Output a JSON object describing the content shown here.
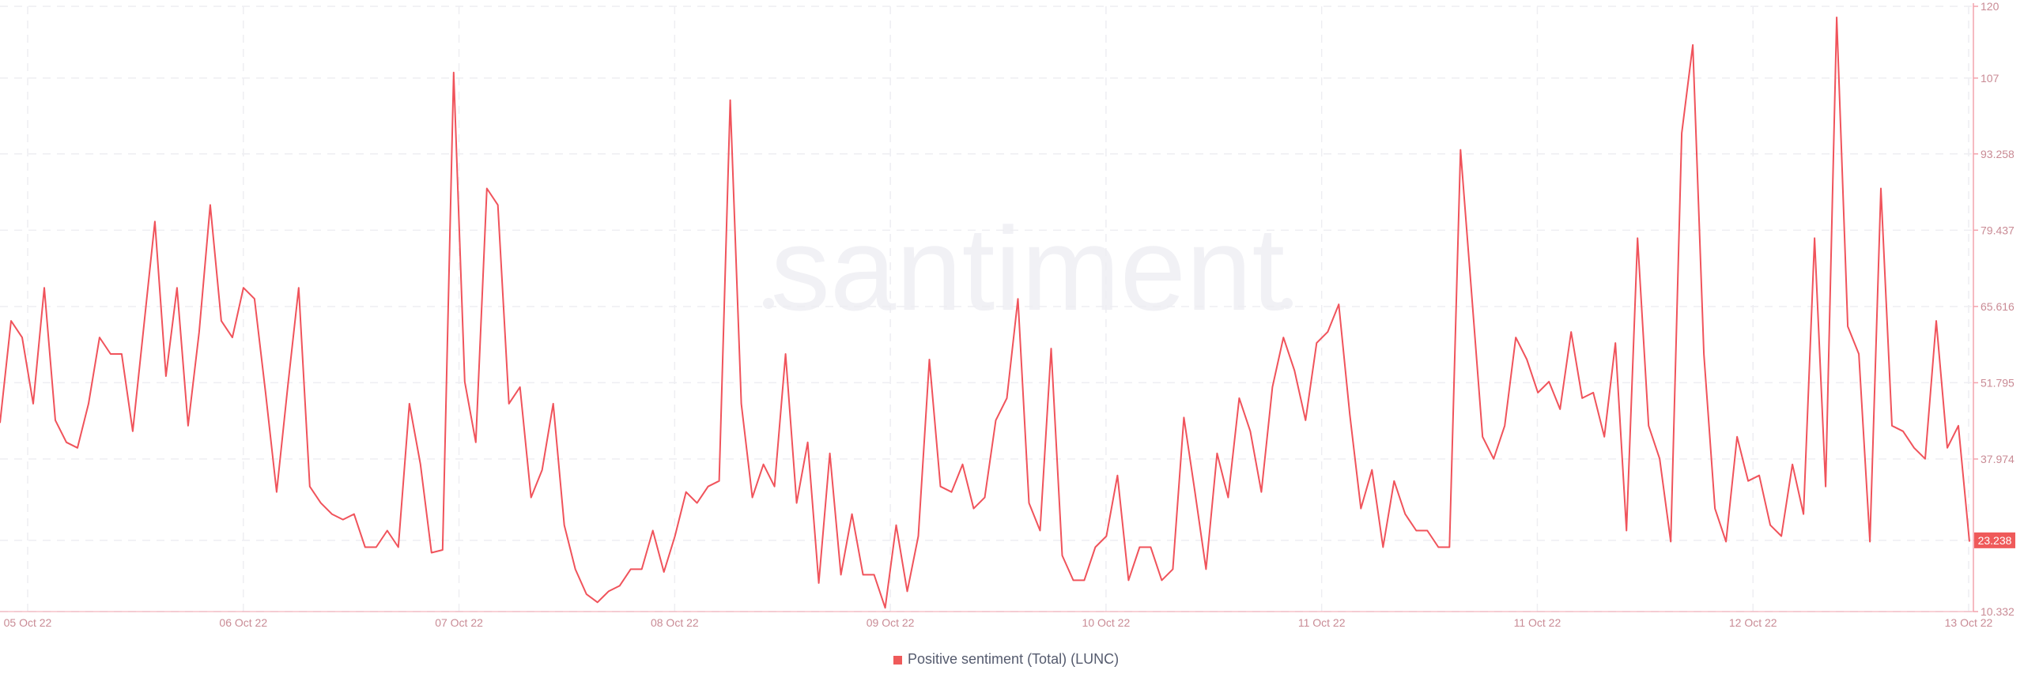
{
  "watermark": "santiment",
  "legend": {
    "label": "Positive sentiment (Total) (LUNC)",
    "color": "#ef5a5a"
  },
  "colors": {
    "line": "#f0535b",
    "axis": "#f3a3ad",
    "tick_text": "#c98b95",
    "grid": "#eeeef2",
    "watermark": "#f1f1f5",
    "last_value_bg": "#ef5a5a"
  },
  "chart_data": {
    "type": "line",
    "title": "",
    "xlabel": "",
    "ylabel": "",
    "x_ticks": [
      "05 Oct 22",
      "06 Oct 22",
      "07 Oct 22",
      "08 Oct 22",
      "09 Oct 22",
      "10 Oct 22",
      "11 Oct 22",
      "11 Oct 22",
      "12 Oct 22",
      "13 Oct 22"
    ],
    "y_ticks": [
      "10.332",
      "23.238",
      "37.974",
      "51.795",
      "65.616",
      "79.437",
      "93.258",
      "107",
      "120"
    ],
    "ylim": [
      10.332,
      120
    ],
    "grid": true,
    "last_value": "23.238",
    "series": [
      {
        "name": "Positive sentiment (Total) (LUNC)",
        "values": [
          44.5,
          63,
          60,
          48,
          69,
          45,
          41,
          40,
          48,
          60,
          57,
          57,
          43,
          62,
          81,
          53,
          69,
          44,
          61,
          84,
          63,
          60,
          69,
          67,
          50,
          32,
          51,
          69,
          33,
          30,
          28,
          27,
          28,
          22,
          22,
          25,
          22,
          48,
          37,
          21,
          21.5,
          108,
          52,
          41,
          87,
          84,
          48,
          51,
          31,
          36,
          48,
          26,
          18,
          13.5,
          12,
          14,
          15,
          18,
          18,
          25,
          17.5,
          24,
          32,
          30,
          33,
          34,
          103,
          48,
          31,
          37,
          33,
          57,
          30,
          41,
          15.5,
          39,
          17,
          28,
          17,
          17,
          11,
          26,
          14,
          24,
          56,
          33,
          32,
          37,
          29,
          31,
          45,
          49,
          67,
          30,
          25,
          58,
          20.5,
          16,
          16,
          22,
          24,
          35,
          16,
          22,
          22,
          16,
          18,
          45.5,
          32,
          18,
          39,
          31,
          49,
          43,
          32,
          51,
          60,
          54,
          45,
          59,
          61,
          66,
          46,
          29,
          36,
          22,
          34,
          28,
          25,
          25,
          22,
          22,
          94,
          68,
          42,
          38,
          44,
          60,
          56,
          50,
          52,
          47,
          61,
          49,
          50,
          42,
          59,
          25,
          78,
          44,
          38,
          23,
          97,
          113,
          57,
          29,
          23,
          42,
          34,
          35,
          26,
          24,
          37,
          28,
          78,
          33,
          118,
          62,
          57,
          23,
          87,
          44,
          43,
          40,
          38,
          63,
          40,
          44,
          23
        ]
      }
    ]
  }
}
